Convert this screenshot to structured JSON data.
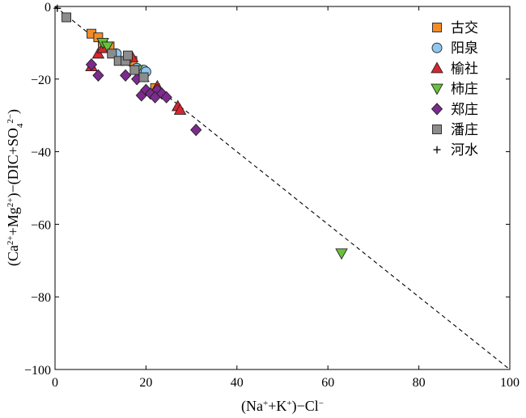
{
  "chart_data": {
    "type": "scatter",
    "title": "",
    "xlabel": "(Na⁺+K⁺)−Cl⁻",
    "ylabel": "(Ca²⁺+Mg²⁺)−(DIC+SO₄²⁻)",
    "xlim": [
      0,
      100
    ],
    "ylim": [
      -100,
      0
    ],
    "xticks": [
      0,
      20,
      40,
      60,
      80,
      100
    ],
    "yticks": [
      0,
      -20,
      -40,
      -60,
      -80,
      -100
    ],
    "xtick_labels": [
      "0",
      "20",
      "40",
      "60",
      "80",
      "100"
    ],
    "ytick_labels": [
      "0",
      "−20",
      "−40",
      "−60",
      "−80",
      "−100"
    ],
    "grid": false,
    "legend_position": "top-right",
    "reference_line": {
      "style": "dashed",
      "x": [
        0,
        100
      ],
      "y": [
        0,
        -100
      ]
    },
    "series": [
      {
        "name": "古交",
        "marker": "square",
        "color": "#f28c28",
        "points": [
          [
            8,
            -7.5
          ],
          [
            9.5,
            -8.5
          ],
          [
            10.5,
            -10
          ],
          [
            12,
            -11
          ],
          [
            17,
            -15
          ],
          [
            22,
            -22.5
          ]
        ]
      },
      {
        "name": "阳泉",
        "marker": "circle",
        "color": "#8ec8ee",
        "points": [
          [
            13.5,
            -13
          ],
          [
            16,
            -14.5
          ],
          [
            18,
            -17
          ],
          [
            19.5,
            -17.5
          ],
          [
            20,
            -18
          ]
        ]
      },
      {
        "name": "榆社",
        "marker": "triangle-up",
        "color": "#d7262f",
        "points": [
          [
            8,
            -16.5
          ],
          [
            9.5,
            -13
          ],
          [
            10.5,
            -11.5
          ],
          [
            17,
            -14
          ],
          [
            22.5,
            -22
          ],
          [
            27,
            -27.5
          ],
          [
            27.5,
            -28.5
          ]
        ]
      },
      {
        "name": "柿庄",
        "marker": "triangle-down",
        "color": "#66c23a",
        "points": [
          [
            10.5,
            -10
          ],
          [
            11.5,
            -11
          ],
          [
            18,
            -17.5
          ],
          [
            63,
            -68
          ]
        ]
      },
      {
        "name": "郑庄",
        "marker": "diamond",
        "color": "#7d2a8e",
        "points": [
          [
            8,
            -16
          ],
          [
            9.5,
            -19
          ],
          [
            15.5,
            -19
          ],
          [
            18,
            -20
          ],
          [
            19,
            -24.5
          ],
          [
            20,
            -23
          ],
          [
            21,
            -24
          ],
          [
            22.5,
            -23
          ],
          [
            22,
            -25
          ],
          [
            23.5,
            -24
          ],
          [
            24.5,
            -25
          ],
          [
            31,
            -34
          ]
        ]
      },
      {
        "name": "潘庄",
        "marker": "square",
        "color": "#8c8c8c",
        "points": [
          [
            2.5,
            -3
          ],
          [
            12.5,
            -13
          ],
          [
            14,
            -15
          ],
          [
            15.5,
            -15
          ],
          [
            16,
            -13.5
          ],
          [
            17.5,
            -17.5
          ],
          [
            19.5,
            -19.5
          ]
        ]
      },
      {
        "name": "河水",
        "marker": "plus",
        "color": "#000000",
        "points": [
          [
            0.5,
            -0.5
          ]
        ]
      }
    ]
  }
}
